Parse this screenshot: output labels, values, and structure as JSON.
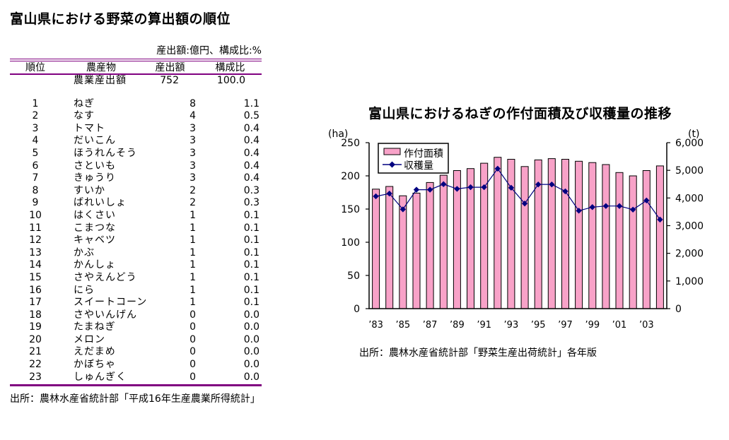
{
  "left_panel": {
    "title": "富山県における野菜の算出額の順位",
    "units_note": "産出額:億円、構成比:%",
    "table": {
      "headers": [
        "順位",
        "農産物",
        "産出額",
        "構成比"
      ],
      "total_row": {
        "product": "農業産出額",
        "value": "752",
        "ratio": "100.0"
      },
      "rows": [
        [
          "1",
          "ねぎ",
          "8",
          "1.1"
        ],
        [
          "2",
          "なす",
          "4",
          "0.5"
        ],
        [
          "3",
          "トマト",
          "3",
          "0.4"
        ],
        [
          "4",
          "だいこん",
          "3",
          "0.4"
        ],
        [
          "5",
          "ほうれんそう",
          "3",
          "0.4"
        ],
        [
          "6",
          "さといも",
          "3",
          "0.4"
        ],
        [
          "7",
          "きゅうり",
          "3",
          "0.4"
        ],
        [
          "8",
          "すいか",
          "2",
          "0.3"
        ],
        [
          "9",
          "ばれいしょ",
          "2",
          "0.3"
        ],
        [
          "10",
          "はくさい",
          "1",
          "0.1"
        ],
        [
          "11",
          "こまつな",
          "1",
          "0.1"
        ],
        [
          "12",
          "キャベツ",
          "1",
          "0.1"
        ],
        [
          "13",
          "かぶ",
          "1",
          "0.1"
        ],
        [
          "14",
          "かんしょ",
          "1",
          "0.1"
        ],
        [
          "15",
          "さやえんどう",
          "1",
          "0.1"
        ],
        [
          "16",
          "にら",
          "1",
          "0.1"
        ],
        [
          "17",
          "スイートコーン",
          "1",
          "0.1"
        ],
        [
          "18",
          "さやいんげん",
          "0",
          "0.0"
        ],
        [
          "19",
          "たまねぎ",
          "0",
          "0.0"
        ],
        [
          "20",
          "メロン",
          "0",
          "0.0"
        ],
        [
          "21",
          "えだまめ",
          "0",
          "0.0"
        ],
        [
          "22",
          "かぼちゃ",
          "0",
          "0.0"
        ],
        [
          "23",
          "しゅんぎく",
          "0",
          "0.0"
        ]
      ]
    },
    "source": "出所：農林水産省統計部「平成16年生産農業所得統計」",
    "rule_color": "#800080"
  },
  "chart": {
    "source": "出所：農林水産省統計部「野菜生産出荷統計」各年版",
    "colors": {
      "bar_fill": "#F8A2C8",
      "bar_border": "#000000",
      "line": "#000080"
    }
  },
  "chart_data": {
    "type": "bar+line",
    "title": "富山県におけるねぎの作付面積及び収穫量の推移",
    "categories": [
      "1983",
      "1984",
      "1985",
      "1986",
      "1987",
      "1988",
      "1989",
      "1990",
      "1991",
      "1992",
      "1993",
      "1994",
      "1995",
      "1996",
      "1997",
      "1998",
      "1999",
      "2000",
      "2001",
      "2002",
      "2003",
      "2004"
    ],
    "x_tick_labels": [
      "’83",
      "’85",
      "’87",
      "’89",
      "’91",
      "’93",
      "’95",
      "’97",
      "’99",
      "’01",
      "’03"
    ],
    "left_axis": {
      "unit": "(ha)",
      "lim": [
        0,
        250
      ],
      "ticks": [
        0,
        50,
        100,
        150,
        200,
        250
      ],
      "tick_labels": [
        "0",
        "50",
        "100",
        "150",
        "200",
        "250"
      ]
    },
    "right_axis": {
      "unit": "(t)",
      "lim": [
        0,
        6000
      ],
      "ticks": [
        0,
        1000,
        2000,
        3000,
        4000,
        5000,
        6000
      ],
      "tick_labels": [
        "0",
        "1,000",
        "2,000",
        "3,000",
        "4,000",
        "5,000",
        "6,000"
      ]
    },
    "series": [
      {
        "name": "作付面積",
        "type": "bar",
        "axis": "left",
        "values": [
          180,
          184,
          170,
          174,
          190,
          201,
          208,
          211,
          219,
          228,
          225,
          214,
          224,
          226,
          225,
          222,
          220,
          217,
          205,
          200,
          208,
          215
        ]
      },
      {
        "name": "収穫量",
        "type": "line",
        "axis": "right",
        "values": [
          4060,
          4160,
          3590,
          4300,
          4300,
          4500,
          4330,
          4390,
          4390,
          5060,
          4370,
          3800,
          4490,
          4490,
          4240,
          3540,
          3670,
          3710,
          3710,
          3580,
          3910,
          3220
        ]
      }
    ],
    "legend_position": "top-left",
    "grid": false
  }
}
